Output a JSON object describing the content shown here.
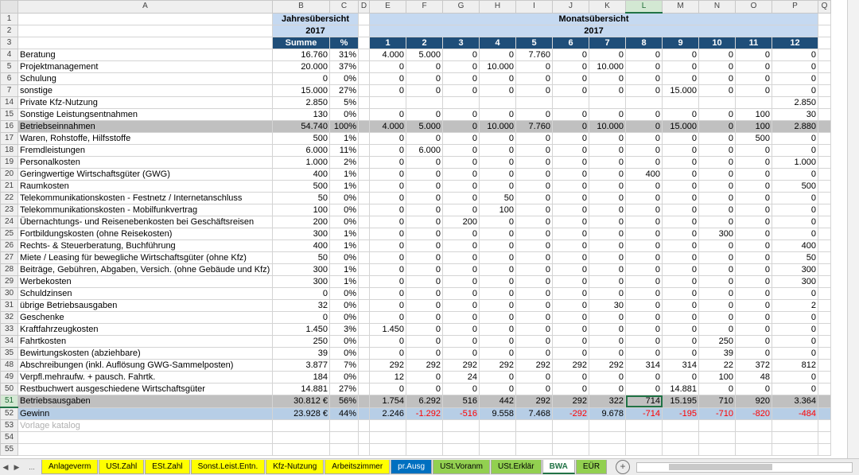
{
  "columns": [
    "A",
    "B",
    "C",
    "D",
    "E",
    "F",
    "G",
    "H",
    "I",
    "J",
    "K",
    "L",
    "M",
    "N",
    "O",
    "P",
    "Q"
  ],
  "selected_column": "L",
  "selected_row": "51",
  "header": {
    "year_title": "Jahresübersicht",
    "month_title": "Monatsübersicht",
    "year": "2017",
    "sum_label": "Summe",
    "pct_label": "%",
    "months": [
      "1",
      "2",
      "3",
      "4",
      "5",
      "6",
      "7",
      "8",
      "9",
      "10",
      "11",
      "12"
    ]
  },
  "rows": [
    {
      "num": "4",
      "label": "Beratung",
      "sum": "16.760",
      "pct": "31%",
      "m": [
        "4.000",
        "5.000",
        "0",
        "0",
        "7.760",
        "0",
        "0",
        "0",
        "0",
        "0",
        "0",
        "0"
      ]
    },
    {
      "num": "5",
      "label": "Projektmanagement",
      "sum": "20.000",
      "pct": "37%",
      "m": [
        "0",
        "0",
        "0",
        "10.000",
        "0",
        "0",
        "10.000",
        "0",
        "0",
        "0",
        "0",
        "0"
      ]
    },
    {
      "num": "6",
      "label": "Schulung",
      "sum": "0",
      "pct": "0%",
      "m": [
        "0",
        "0",
        "0",
        "0",
        "0",
        "0",
        "0",
        "0",
        "0",
        "0",
        "0",
        "0"
      ]
    },
    {
      "num": "7",
      "label": "sonstige",
      "sum": "15.000",
      "pct": "27%",
      "m": [
        "0",
        "0",
        "0",
        "0",
        "0",
        "0",
        "0",
        "0",
        "15.000",
        "0",
        "0",
        "0"
      ]
    },
    {
      "num": "14",
      "label": "Private Kfz-Nutzung",
      "sum": "2.850",
      "pct": "5%",
      "m": [
        "",
        "",
        "",
        "",
        "",
        "",
        "",
        "",
        "",
        "",
        "",
        "2.850"
      ]
    },
    {
      "num": "15",
      "label": "Sonstige Leistungsentnahmen",
      "sum": "130",
      "pct": "0%",
      "m": [
        "0",
        "0",
        "0",
        "0",
        "0",
        "0",
        "0",
        "0",
        "0",
        "0",
        "100",
        "30"
      ]
    },
    {
      "num": "16",
      "label": "Betriebseinnahmen",
      "sum": "54.740",
      "pct": "100%",
      "style": "gray",
      "m": [
        "4.000",
        "5.000",
        "0",
        "10.000",
        "7.760",
        "0",
        "10.000",
        "0",
        "15.000",
        "0",
        "100",
        "2.880"
      ]
    },
    {
      "num": "17",
      "label": "Waren, Rohstoffe, Hilfsstoffe",
      "sum": "500",
      "pct": "1%",
      "m": [
        "0",
        "0",
        "0",
        "0",
        "0",
        "0",
        "0",
        "0",
        "0",
        "0",
        "500",
        "0"
      ]
    },
    {
      "num": "18",
      "label": "Fremdleistungen",
      "sum": "6.000",
      "pct": "11%",
      "m": [
        "0",
        "6.000",
        "0",
        "0",
        "0",
        "0",
        "0",
        "0",
        "0",
        "0",
        "0",
        "0"
      ]
    },
    {
      "num": "19",
      "label": "Personalkosten",
      "sum": "1.000",
      "pct": "2%",
      "m": [
        "0",
        "0",
        "0",
        "0",
        "0",
        "0",
        "0",
        "0",
        "0",
        "0",
        "0",
        "1.000"
      ]
    },
    {
      "num": "20",
      "label": "Geringwertige Wirtschaftsgüter (GWG)",
      "sum": "400",
      "pct": "1%",
      "m": [
        "0",
        "0",
        "0",
        "0",
        "0",
        "0",
        "0",
        "400",
        "0",
        "0",
        "0",
        "0"
      ]
    },
    {
      "num": "21",
      "label": "Raumkosten",
      "sum": "500",
      "pct": "1%",
      "m": [
        "0",
        "0",
        "0",
        "0",
        "0",
        "0",
        "0",
        "0",
        "0",
        "0",
        "0",
        "500"
      ]
    },
    {
      "num": "22",
      "label": "Telekommunikationskosten - Festnetz / Internetanschluss",
      "sum": "50",
      "pct": "0%",
      "m": [
        "0",
        "0",
        "0",
        "50",
        "0",
        "0",
        "0",
        "0",
        "0",
        "0",
        "0",
        "0"
      ]
    },
    {
      "num": "23",
      "label": "Telekommunikationskosten - Mobilfunkvertrag",
      "sum": "100",
      "pct": "0%",
      "m": [
        "0",
        "0",
        "0",
        "100",
        "0",
        "0",
        "0",
        "0",
        "0",
        "0",
        "0",
        "0"
      ]
    },
    {
      "num": "24",
      "label": "Übernachtungs- und Reisenebenkosten bei Geschäftsreisen",
      "sum": "200",
      "pct": "0%",
      "m": [
        "0",
        "0",
        "200",
        "0",
        "0",
        "0",
        "0",
        "0",
        "0",
        "0",
        "0",
        "0"
      ]
    },
    {
      "num": "25",
      "label": "Fortbildungskosten (ohne Reisekosten)",
      "sum": "300",
      "pct": "1%",
      "m": [
        "0",
        "0",
        "0",
        "0",
        "0",
        "0",
        "0",
        "0",
        "0",
        "300",
        "0",
        "0"
      ]
    },
    {
      "num": "26",
      "label": "Rechts- & Steuerberatung, Buchführung",
      "sum": "400",
      "pct": "1%",
      "m": [
        "0",
        "0",
        "0",
        "0",
        "0",
        "0",
        "0",
        "0",
        "0",
        "0",
        "0",
        "400"
      ]
    },
    {
      "num": "27",
      "label": "Miete / Leasing für bewegliche Wirtschaftsgüter (ohne Kfz)",
      "sum": "50",
      "pct": "0%",
      "m": [
        "0",
        "0",
        "0",
        "0",
        "0",
        "0",
        "0",
        "0",
        "0",
        "0",
        "0",
        "50"
      ]
    },
    {
      "num": "28",
      "label": "Beiträge, Gebühren, Abgaben, Versich. (ohne Gebäude und Kfz)",
      "sum": "300",
      "pct": "1%",
      "m": [
        "0",
        "0",
        "0",
        "0",
        "0",
        "0",
        "0",
        "0",
        "0",
        "0",
        "0",
        "300"
      ]
    },
    {
      "num": "29",
      "label": "Werbekosten",
      "sum": "300",
      "pct": "1%",
      "m": [
        "0",
        "0",
        "0",
        "0",
        "0",
        "0",
        "0",
        "0",
        "0",
        "0",
        "0",
        "300"
      ]
    },
    {
      "num": "30",
      "label": "Schuldzinsen",
      "sum": "0",
      "pct": "0%",
      "m": [
        "0",
        "0",
        "0",
        "0",
        "0",
        "0",
        "0",
        "0",
        "0",
        "0",
        "0",
        "0"
      ]
    },
    {
      "num": "31",
      "label": "übrige Betriebsausgaben",
      "sum": "32",
      "pct": "0%",
      "m": [
        "0",
        "0",
        "0",
        "0",
        "0",
        "0",
        "30",
        "0",
        "0",
        "0",
        "0",
        "2"
      ]
    },
    {
      "num": "32",
      "label": "Geschenke",
      "sum": "0",
      "pct": "0%",
      "m": [
        "0",
        "0",
        "0",
        "0",
        "0",
        "0",
        "0",
        "0",
        "0",
        "0",
        "0",
        "0"
      ]
    },
    {
      "num": "33",
      "label": "Kraftfahrzeugkosten",
      "sum": "1.450",
      "pct": "3%",
      "m": [
        "1.450",
        "0",
        "0",
        "0",
        "0",
        "0",
        "0",
        "0",
        "0",
        "0",
        "0",
        "0"
      ]
    },
    {
      "num": "34",
      "label": "Fahrtkosten",
      "sum": "250",
      "pct": "0%",
      "m": [
        "0",
        "0",
        "0",
        "0",
        "0",
        "0",
        "0",
        "0",
        "0",
        "250",
        "0",
        "0"
      ]
    },
    {
      "num": "35",
      "label": "Bewirtungskosten (abziehbare)",
      "sum": "39",
      "pct": "0%",
      "m": [
        "0",
        "0",
        "0",
        "0",
        "0",
        "0",
        "0",
        "0",
        "0",
        "39",
        "0",
        "0"
      ]
    },
    {
      "num": "48",
      "label": "Abschreibungen (inkl. Auflösung GWG-Sammelposten)",
      "sum": "3.877",
      "pct": "7%",
      "m": [
        "292",
        "292",
        "292",
        "292",
        "292",
        "292",
        "292",
        "314",
        "314",
        "22",
        "372",
        "812"
      ]
    },
    {
      "num": "49",
      "label": "Verpfl.mehraufw. + pausch. Fahrtk.",
      "sum": "184",
      "pct": "0%",
      "m": [
        "12",
        "0",
        "24",
        "0",
        "0",
        "0",
        "0",
        "0",
        "0",
        "100",
        "48",
        "0"
      ]
    },
    {
      "num": "50",
      "label": "Restbuchwert ausgeschiedene Wirtschaftsgüter",
      "sum": "14.881",
      "pct": "27%",
      "m": [
        "0",
        "0",
        "0",
        "0",
        "0",
        "0",
        "0",
        "0",
        "14.881",
        "0",
        "0",
        "0"
      ]
    },
    {
      "num": "51",
      "label": "Betriebsausgaben",
      "sum": "30.812 €",
      "pct": "56%",
      "style": "gray",
      "m": [
        "1.754",
        "6.292",
        "516",
        "442",
        "292",
        "292",
        "322",
        "714",
        "15.195",
        "710",
        "920",
        "3.364"
      ]
    },
    {
      "num": "52",
      "label": "Gewinn",
      "sum": "23.928 €",
      "pct": "44%",
      "style": "total",
      "m": [
        "2.246",
        "-1.292",
        "-516",
        "9.558",
        "7.468",
        "-292",
        "9.678",
        "-714",
        "-195",
        "-710",
        "-820",
        "-484"
      ]
    }
  ],
  "empty_rows": [
    "53",
    "54",
    "55"
  ],
  "faint_note": "Vorlage katalog",
  "sheet_tabs": [
    {
      "label": "Anlageverm",
      "style": "yellow"
    },
    {
      "label": "USt.Zahl",
      "style": "yellow"
    },
    {
      "label": "ESt.Zahl",
      "style": "yellow"
    },
    {
      "label": "Sonst.Leist.Entn.",
      "style": "yellow"
    },
    {
      "label": "Kfz-Nutzung",
      "style": "yellow"
    },
    {
      "label": "Arbeitszimmer",
      "style": "yellow"
    },
    {
      "label": "pr.Ausg",
      "style": "blue"
    },
    {
      "label": "USt.Voranm",
      "style": "green"
    },
    {
      "label": "USt.Erklär",
      "style": "green"
    },
    {
      "label": "BWA",
      "style": "active"
    },
    {
      "label": "EÜR",
      "style": "green"
    }
  ],
  "tab_nav": {
    "prev": "◀",
    "next": "▶",
    "more": "..."
  },
  "add_sheet_label": "+",
  "colors": {
    "header_blue": "#c5d9f1",
    "dark_blue": "#1f4e79",
    "gray_row": "#c0c0c0",
    "negative": "#ff0000",
    "excel_green": "#217346"
  }
}
